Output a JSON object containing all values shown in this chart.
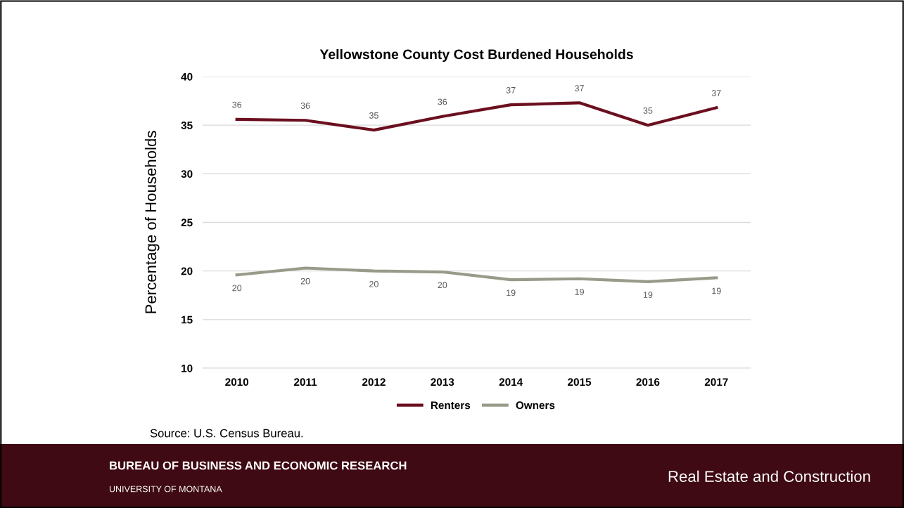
{
  "chart_data": {
    "type": "line",
    "title": "Yellowstone County Cost Burdened Households",
    "ylabel": "Percentage of Households",
    "categories": [
      "2010",
      "2011",
      "2012",
      "2013",
      "2014",
      "2015",
      "2016",
      "2017"
    ],
    "series": [
      {
        "name": "Renters",
        "color": "#6b0f1f",
        "values": [
          35.6,
          35.5,
          34.5,
          35.9,
          37.1,
          37.3,
          35.0,
          36.8
        ],
        "value_labels": [
          "36",
          "36",
          "35",
          "36",
          "37",
          "37",
          "35",
          "37"
        ]
      },
      {
        "name": "Owners",
        "color": "#9a9a8a",
        "values": [
          19.6,
          20.3,
          20.0,
          19.9,
          19.1,
          19.2,
          18.9,
          19.3
        ],
        "value_labels": [
          "20",
          "20",
          "20",
          "20",
          "19",
          "19",
          "19",
          "19"
        ]
      }
    ],
    "ylim": [
      10,
      40
    ],
    "yticks": [
      10,
      15,
      20,
      25,
      30,
      35,
      40
    ],
    "grid": "y",
    "legend": "bottom",
    "marker": "none",
    "line_style": "solid",
    "annotations": [
      "Source: U.S. Census Bureau.",
      "BUREAU OF BUSINESS AND ECONOMIC RESEARCH",
      "UNIVERSITY OF MONTANA",
      "Real Estate and Construction"
    ]
  }
}
